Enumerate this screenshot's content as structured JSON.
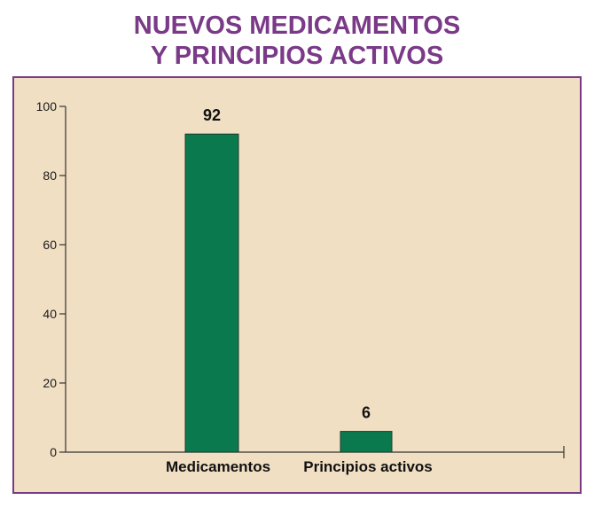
{
  "colors": {
    "title": "#7a3a88",
    "frame_border": "#7a3a88",
    "frame_background": "#f0dfc3",
    "bar_fill": "#0a7a4e",
    "axis": "#333333"
  },
  "chart_data": {
    "type": "bar",
    "title_lines": [
      "NUEVOS MEDICAMENTOS",
      "Y PRINCIPIOS ACTIVOS"
    ],
    "categories": [
      "Medicamentos",
      "Principios activos"
    ],
    "values": [
      92,
      6
    ],
    "data_labels": [
      "92",
      "6"
    ],
    "xlabel": "",
    "ylabel": "",
    "ylim": [
      0,
      100
    ],
    "yticks": [
      0,
      20,
      40,
      60,
      80,
      100
    ],
    "grid": false,
    "legend": "none"
  }
}
